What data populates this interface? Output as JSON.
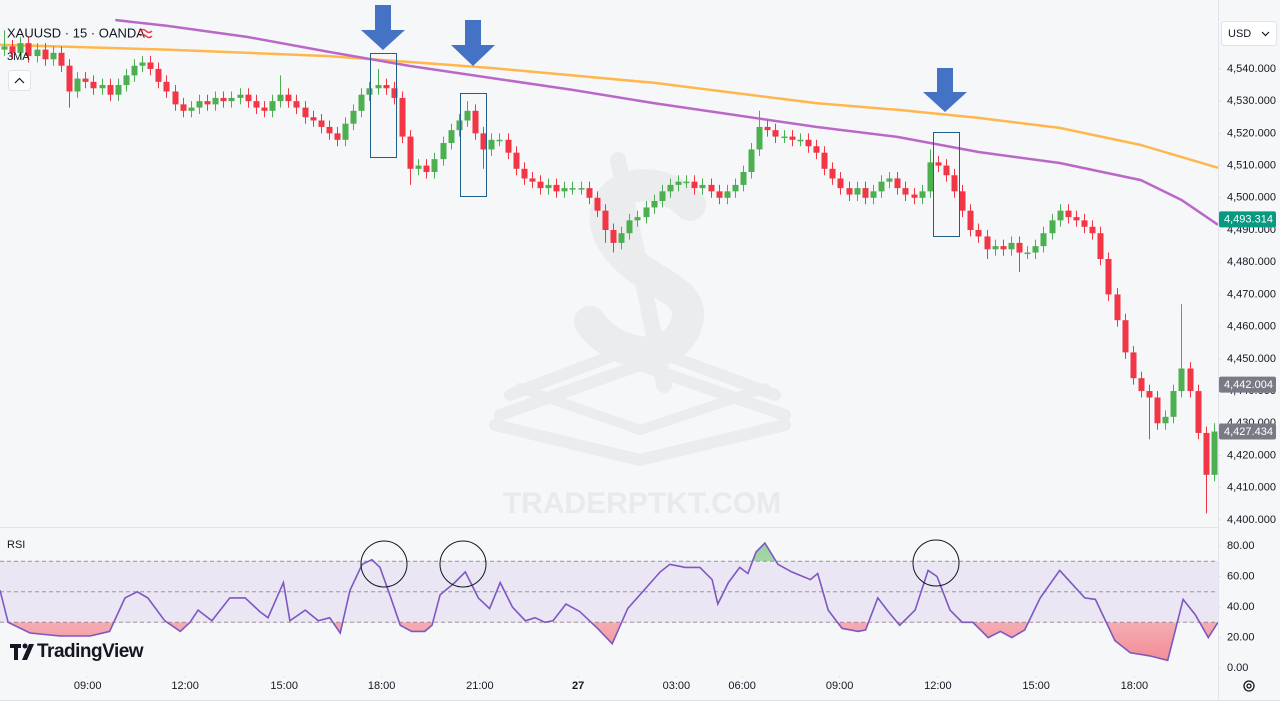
{
  "chart_data": [
    {
      "type": "candlestick",
      "title": "XAUUSD · 15 · OANDA",
      "indicator": "3MA",
      "currency": "USD",
      "watermark": "TRADERPTKT.COM",
      "up_color": "#4caf50",
      "down_color": "#f23645",
      "xlim": [
        -0.5,
        149.5
      ],
      "xticks": [
        {
          "value": 10.3,
          "label": "09:00"
        },
        {
          "value": 22.3,
          "label": "12:00"
        },
        {
          "value": 34.5,
          "label": "15:00"
        },
        {
          "value": 46.5,
          "label": "18:00"
        },
        {
          "value": 58.6,
          "label": "21:00"
        },
        {
          "value": 70.7,
          "label": "27"
        },
        {
          "value": 82.8,
          "label": "03:00"
        },
        {
          "value": 90.9,
          "label": "06:00"
        },
        {
          "value": 102.9,
          "label": "09:00"
        },
        {
          "value": 115,
          "label": "12:00"
        },
        {
          "value": 127.1,
          "label": "15:00"
        },
        {
          "value": 139.2,
          "label": "18:00"
        }
      ],
      "ylim": [
        4397.8,
        4561.4
      ],
      "yticks": [
        {
          "value": 4400,
          "label": "4,400.000"
        },
        {
          "value": 4410,
          "label": "4,410.000"
        },
        {
          "value": 4420,
          "label": "4,420.000"
        },
        {
          "value": 4430,
          "label": "4,430.000"
        },
        {
          "value": 4440,
          "label": "4,440.000"
        },
        {
          "value": 4450,
          "label": "4,450.000"
        },
        {
          "value": 4460,
          "label": "4,460.000"
        },
        {
          "value": 4470,
          "label": "4,470.000"
        },
        {
          "value": 4480,
          "label": "4,480.000"
        },
        {
          "value": 4490,
          "label": "4,490.000"
        },
        {
          "value": 4500,
          "label": "4,500.000"
        },
        {
          "value": 4510,
          "label": "4,510.000"
        },
        {
          "value": 4520,
          "label": "4,520.000"
        },
        {
          "value": 4530,
          "label": "4,530.000"
        },
        {
          "value": 4540,
          "label": "4,540.000"
        }
      ],
      "x": [
        0,
        1,
        2,
        3,
        4,
        5,
        6,
        7,
        8,
        9,
        10,
        11,
        12,
        13,
        14,
        15,
        16,
        17,
        18,
        19,
        20,
        21,
        22,
        23,
        24,
        25,
        26,
        27,
        28,
        29,
        30,
        31,
        32,
        33,
        34,
        35,
        36,
        37,
        38,
        39,
        40,
        41,
        42,
        43,
        44,
        45,
        46,
        47,
        48,
        49,
        50,
        51,
        52,
        53,
        54,
        55,
        56,
        57,
        58,
        59,
        60,
        61,
        62,
        63,
        64,
        65,
        66,
        67,
        68,
        69,
        70,
        71,
        72,
        73,
        74,
        75,
        76,
        77,
        78,
        79,
        80,
        81,
        82,
        83,
        84,
        85,
        86,
        87,
        88,
        89,
        90,
        91,
        92,
        93,
        94,
        95,
        96,
        97,
        98,
        99,
        100,
        101,
        102,
        103,
        104,
        105,
        106,
        107,
        108,
        109,
        110,
        111,
        112,
        113,
        114,
        115,
        116,
        117,
        118,
        119,
        120,
        121,
        122,
        123,
        124,
        125,
        126,
        127,
        128,
        129,
        130,
        131,
        132,
        133,
        134,
        135,
        136,
        137,
        138,
        139,
        140,
        141,
        142,
        143,
        144,
        145,
        146,
        147,
        148,
        149
      ],
      "open": [
        4546,
        4547,
        4545,
        4548,
        4544,
        4546,
        4543,
        4545,
        4541,
        4533,
        4537,
        4536,
        4534,
        4535,
        4532,
        4535,
        4538,
        4541,
        4542,
        4540,
        4536,
        4533,
        4529,
        4527,
        4528,
        4530,
        4529,
        4531,
        4530,
        4531,
        4532,
        4530,
        4528,
        4527,
        4530,
        4532,
        4530,
        4528,
        4525,
        4524,
        4522,
        4520,
        4518,
        4523,
        4527,
        4532,
        4534,
        4535,
        4534,
        4531,
        4519,
        4509,
        4510,
        4508,
        4512,
        4517,
        4521,
        4524,
        4527,
        4520,
        4515,
        4518,
        4518,
        4514,
        4509,
        4506,
        4505,
        4503,
        4504,
        4502,
        4503,
        4503,
        4503,
        4500,
        4496,
        4490,
        4486,
        4489,
        4493,
        4494,
        4497,
        4499,
        4502,
        4504,
        4505,
        4505,
        4503,
        4504,
        4502,
        4500,
        4502,
        4504,
        4508,
        4515,
        4522,
        4521,
        4519,
        4519,
        4518,
        4518,
        4516,
        4514,
        4509,
        4506,
        4503,
        4501,
        4503,
        4500,
        4502,
        4505,
        4506,
        4503,
        4501,
        4500,
        4502,
        4511,
        4510,
        4507,
        4502,
        4496,
        4490,
        4488,
        4484,
        4485,
        4484,
        4486,
        4483,
        4483,
        4485,
        4489,
        4493,
        4496,
        4494,
        4493,
        4491,
        4489,
        4481,
        4470,
        4462,
        4452,
        4444,
        4440,
        4438,
        4430,
        4432,
        4440,
        4447,
        4440,
        4427,
        4414
      ],
      "high": [
        4552,
        4549,
        4550,
        4550,
        4548,
        4548,
        4547,
        4547,
        4543,
        4539,
        4539,
        4538,
        4537,
        4537,
        4537,
        4540,
        4543,
        4544,
        4544,
        4542,
        4538,
        4535,
        4531,
        4530,
        4532,
        4532,
        4533,
        4533,
        4533,
        4534,
        4534,
        4532,
        4530,
        4532,
        4538,
        4534,
        4532,
        4530,
        4527,
        4526,
        4524,
        4522,
        4525,
        4529,
        4534,
        4536,
        4540,
        4537,
        4536,
        4533,
        4521,
        4512,
        4512,
        4514,
        4519,
        4523,
        4526,
        4530,
        4529,
        4522,
        4520,
        4520,
        4520,
        4516,
        4511,
        4508,
        4507,
        4506,
        4506,
        4505,
        4505,
        4505,
        4505,
        4502,
        4498,
        4492,
        4491,
        4495,
        4496,
        4499,
        4501,
        4504,
        4506,
        4507,
        4507,
        4507,
        4506,
        4506,
        4504,
        4504,
        4506,
        4510,
        4517,
        4527,
        4524,
        4523,
        4521,
        4521,
        4520,
        4520,
        4518,
        4516,
        4511,
        4508,
        4505,
        4505,
        4505,
        4504,
        4507,
        4508,
        4508,
        4505,
        4503,
        4504,
        4515,
        4513,
        4512,
        4509,
        4504,
        4498,
        4492,
        4490,
        4487,
        4487,
        4488,
        4488,
        4485,
        4487,
        4491,
        4495,
        4498,
        4498,
        4496,
        4495,
        4493,
        4491,
        4483,
        4472,
        4464,
        4454,
        4446,
        4442,
        4440,
        4434,
        4442,
        4467,
        4449,
        4442,
        4429,
        4430
      ],
      "low": [
        4544,
        4543,
        4543,
        4542,
        4542,
        4541,
        4541,
        4539,
        4528,
        4531,
        4534,
        4532,
        4532,
        4530,
        4530,
        4533,
        4536,
        4539,
        4538,
        4534,
        4531,
        4527,
        4525,
        4525,
        4526,
        4527,
        4527,
        4528,
        4528,
        4529,
        4528,
        4526,
        4525,
        4525,
        4528,
        4528,
        4526,
        4523,
        4522,
        4520,
        4518,
        4516,
        4516,
        4521,
        4525,
        4530,
        4532,
        4532,
        4529,
        4517,
        4504,
        4507,
        4506,
        4506,
        4510,
        4515,
        4519,
        4522,
        4518,
        4509,
        4513,
        4516,
        4512,
        4507,
        4504,
        4503,
        4501,
        4501,
        4500,
        4500,
        4501,
        4501,
        4498,
        4494,
        4486,
        4483,
        4484,
        4487,
        4491,
        4492,
        4495,
        4497,
        4500,
        4502,
        4503,
        4501,
        4501,
        4500,
        4498,
        4498,
        4500,
        4502,
        4506,
        4513,
        4519,
        4517,
        4517,
        4516,
        4516,
        4514,
        4512,
        4507,
        4504,
        4501,
        4499,
        4499,
        4498,
        4498,
        4500,
        4503,
        4501,
        4499,
        4498,
        4498,
        4500,
        4508,
        4505,
        4500,
        4494,
        4488,
        4486,
        4481,
        4482,
        4482,
        4482,
        4477,
        4481,
        4481,
        4483,
        4487,
        4491,
        4492,
        4491,
        4489,
        4487,
        4479,
        4468,
        4460,
        4450,
        4442,
        4438,
        4425,
        4428,
        4428,
        4430,
        4438,
        4438,
        4425,
        4402,
        4412
      ],
      "close": [
        4547,
        4545,
        4548,
        4544,
        4546,
        4543,
        4545,
        4541,
        4533,
        4537,
        4536,
        4534,
        4535,
        4532,
        4535,
        4538,
        4541,
        4542,
        4540,
        4536,
        4533,
        4529,
        4527,
        4528,
        4530,
        4529,
        4531,
        4530,
        4531,
        4532,
        4530,
        4528,
        4527,
        4530,
        4532,
        4530,
        4528,
        4525,
        4524,
        4522,
        4520,
        4518,
        4523,
        4527,
        4532,
        4534,
        4535,
        4534,
        4531,
        4519,
        4509,
        4510,
        4508,
        4512,
        4517,
        4521,
        4524,
        4527,
        4520,
        4515,
        4518,
        4518,
        4514,
        4509,
        4506,
        4505,
        4503,
        4504,
        4502,
        4503,
        4503,
        4503,
        4500,
        4496,
        4490,
        4486,
        4489,
        4493,
        4494,
        4497,
        4499,
        4502,
        4504,
        4505,
        4505,
        4503,
        4504,
        4502,
        4500,
        4502,
        4504,
        4508,
        4515,
        4522,
        4521,
        4519,
        4519,
        4518,
        4518,
        4516,
        4514,
        4509,
        4506,
        4503,
        4501,
        4503,
        4500,
        4502,
        4505,
        4506,
        4503,
        4501,
        4500,
        4502,
        4511,
        4510,
        4507,
        4502,
        4496,
        4490,
        4488,
        4484,
        4485,
        4484,
        4486,
        4483,
        4483,
        4485,
        4489,
        4493,
        4496,
        4494,
        4493,
        4491,
        4489,
        4481,
        4470,
        4462,
        4452,
        4444,
        4440,
        4438,
        4430,
        4432,
        4440,
        4447,
        4440,
        4427,
        4414,
        4427.434
      ],
      "series": [
        {
          "color": "#ffb74d",
          "x": [
            -0.5,
            20,
            40,
            60,
            80,
            100,
            110,
            120,
            130,
            140,
            149.5
          ],
          "values": [
            4547.5,
            4546,
            4544,
            4540.3,
            4535.7,
            4529.4,
            4527.3,
            4524.8,
            4521.7,
            4516.4,
            4509.3
          ]
        },
        {
          "color": "#ba68c8",
          "x": [
            13.7,
            20,
            30,
            40,
            50,
            60,
            70,
            80,
            90,
            100,
            110,
            120,
            130,
            140,
            145,
            149.5
          ],
          "values": [
            4555.2,
            4553.4,
            4549.9,
            4545.3,
            4540.9,
            4537.2,
            4533.5,
            4529.4,
            4525.7,
            4522,
            4518.9,
            4514.2,
            4510.8,
            4505.5,
            4499.3,
            4491.6
          ]
        }
      ],
      "price_labels": [
        {
          "value": 4493.314,
          "label": "4,493.314",
          "color": "#089981"
        },
        {
          "value": 4442.004,
          "label": "4,442.004",
          "color": "#787b86"
        },
        {
          "value": 4427.434,
          "label": "4,427.434",
          "color": "#787b86"
        }
      ]
    },
    {
      "type": "line",
      "title": "RSI",
      "color": "#7e57c2",
      "xlim": [
        -0.5,
        149.5
      ],
      "ylim": [
        -5.2,
        91.8
      ],
      "yticks": [
        {
          "value": 0,
          "label": "0.00"
        },
        {
          "value": 20,
          "label": "20.00"
        },
        {
          "value": 40,
          "label": "40.00"
        },
        {
          "value": 60,
          "label": "60.00"
        },
        {
          "value": 80,
          "label": "80.00"
        }
      ],
      "overbought": 70,
      "middle": 50,
      "oversold": 30,
      "x": [
        -0.5,
        0.5,
        3.2,
        6.9,
        10.6,
        13.0,
        14.9,
        16.4,
        17.7,
        19.8,
        21.7,
        22.9,
        23.9,
        25.6,
        27.8,
        29.7,
        31.5,
        32.5,
        34.4,
        35.2,
        37.1,
        38.7,
        40.1,
        41.4,
        42.6,
        44.1,
        45.3,
        46.3,
        47.5,
        48.8,
        50.2,
        51.8,
        52.7,
        53.7,
        55.5,
        56.8,
        58.4,
        59.8,
        61.1,
        62.6,
        64.2,
        65.4,
        66.6,
        67.6,
        69.2,
        70.9,
        73.1,
        74.9,
        76.8,
        80.8,
        82.0,
        83.9,
        85.7,
        87.2,
        87.9,
        89.2,
        90.6,
        91.6,
        92.6,
        93.7,
        95.3,
        97.0,
        99.3,
        100.2,
        101.5,
        103.2,
        105.2,
        106.1,
        107.6,
        108.9,
        110.3,
        112.2,
        113.8,
        114.9,
        116.5,
        118.0,
        119.3,
        121.2,
        122.7,
        124.1,
        125.7,
        127.6,
        130.0,
        133.1,
        134.4,
        136.8,
        138.7,
        141.1,
        143.3,
        145.2,
        146.7,
        148.3,
        149.5
      ],
      "values": [
        51,
        30,
        23,
        21,
        21,
        24,
        46,
        50,
        46,
        31,
        24,
        30,
        38,
        31,
        46,
        46,
        37,
        33,
        56,
        31,
        38,
        31,
        33,
        23,
        51,
        68,
        71,
        66,
        48,
        28,
        24,
        24,
        28,
        48,
        56,
        63,
        46,
        39,
        56,
        40,
        31,
        33,
        30,
        31,
        42,
        37,
        26,
        16,
        39,
        63,
        68,
        66,
        66,
        58,
        42,
        56,
        66,
        62,
        76,
        82,
        68,
        63,
        58,
        62,
        38,
        26,
        24,
        25,
        46,
        37,
        28,
        38,
        64,
        60,
        38,
        30,
        30,
        20,
        24,
        20,
        25,
        46,
        64,
        46,
        45,
        18,
        10,
        8,
        5,
        45,
        35,
        20,
        30
      ]
    }
  ],
  "brand": "TradingView"
}
